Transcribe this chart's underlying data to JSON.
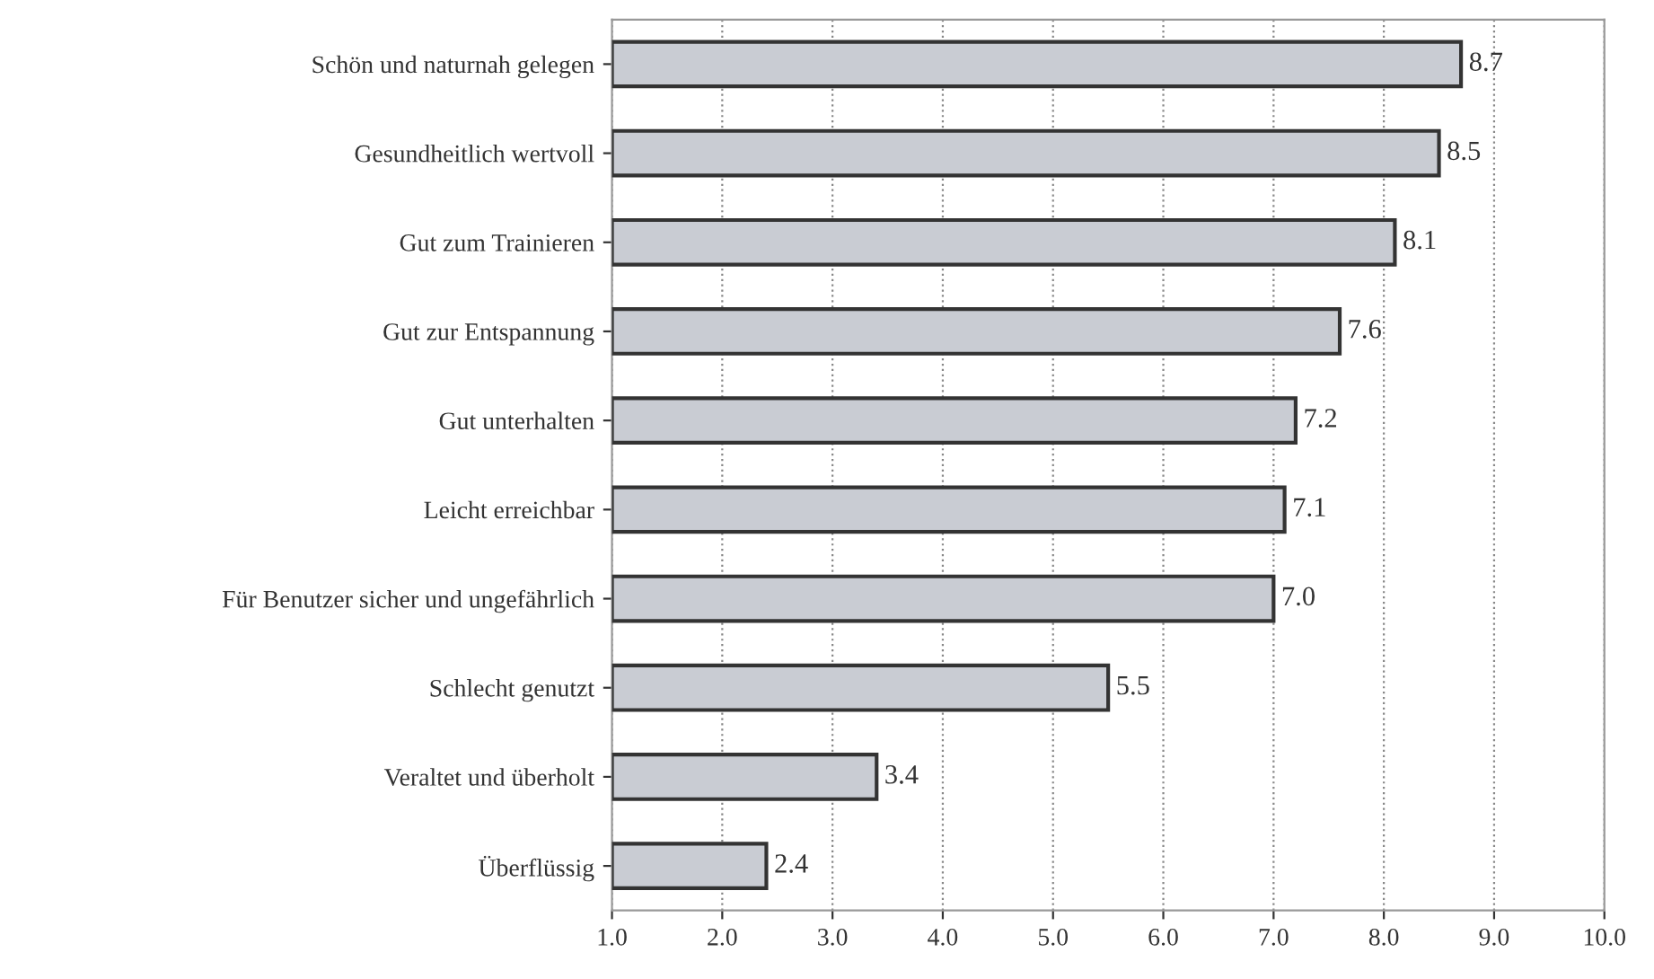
{
  "chart_data": {
    "type": "bar",
    "orientation": "horizontal",
    "categories": [
      "Schön und naturnah gelegen",
      "Gesundheitlich wertvoll",
      "Gut zum Trainieren",
      "Gut zur Entspannung",
      "Gut unterhalten",
      "Leicht erreichbar",
      "Für Benutzer sicher und ungefährlich",
      "Schlecht genutzt",
      "Veraltet und überholt",
      "Überflüssig"
    ],
    "values": [
      8.7,
      8.5,
      8.1,
      7.6,
      7.2,
      7.1,
      7.0,
      5.5,
      3.4,
      2.4
    ],
    "value_labels": [
      "8.7",
      "8.5",
      "8.1",
      "7.6",
      "7.2",
      "7.1",
      "7.0",
      "5.5",
      "3.4",
      "2.4"
    ],
    "color": "#c9ccd3",
    "xlim": [
      1.0,
      10.0
    ],
    "xticks": [
      {
        "value": 1,
        "label": "1.0"
      },
      {
        "value": 2,
        "label": "2.0"
      },
      {
        "value": 3,
        "label": "3.0"
      },
      {
        "value": 4,
        "label": "4.0"
      },
      {
        "value": 5,
        "label": "5.0"
      },
      {
        "value": 6,
        "label": "6.0"
      },
      {
        "value": 7,
        "label": "7.0"
      },
      {
        "value": 8,
        "label": "8.0"
      },
      {
        "value": 9,
        "label": "9.0"
      },
      {
        "value": 10,
        "label": "10.0"
      }
    ],
    "grid": "x"
  }
}
